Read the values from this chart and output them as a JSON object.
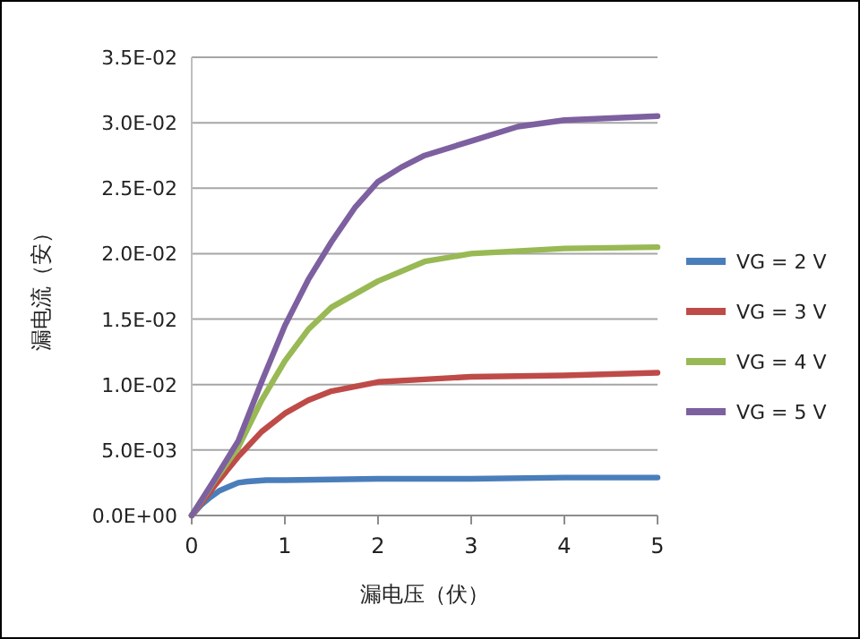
{
  "chart_data": {
    "type": "line",
    "xlabel": "漏电压（伏）",
    "ylabel": "漏电流（安）",
    "xlim": [
      0,
      5
    ],
    "ylim": [
      0,
      0.035
    ],
    "xticks": [
      0,
      1,
      2,
      3,
      4,
      5
    ],
    "yticks": [
      {
        "value": 0,
        "label": "0.0E+00"
      },
      {
        "value": 0.005,
        "label": "5.0E-03"
      },
      {
        "value": 0.01,
        "label": "1.0E-02"
      },
      {
        "value": 0.015,
        "label": "1.5E-02"
      },
      {
        "value": 0.02,
        "label": "2.0E-02"
      },
      {
        "value": 0.025,
        "label": "2.5E-02"
      },
      {
        "value": 0.03,
        "label": "3.0E-02"
      },
      {
        "value": 0.035,
        "label": "3.5E-02"
      }
    ],
    "grid": "y",
    "legend": "right",
    "marker": "none",
    "line_style": "solid",
    "series": [
      {
        "name": "VG = 2 V",
        "color": "#4a7ebb",
        "x": [
          0,
          0.1,
          0.2,
          0.3,
          0.4,
          0.5,
          0.6,
          0.8,
          1,
          2,
          3,
          4,
          5
        ],
        "values": [
          0,
          0.0008,
          0.0014,
          0.0019,
          0.0022,
          0.0025,
          0.0026,
          0.0027,
          0.0027,
          0.0028,
          0.0028,
          0.0029,
          0.0029
        ]
      },
      {
        "name": "VG = 3 V",
        "color": "#be4b48",
        "x": [
          0,
          0.25,
          0.5,
          0.75,
          1,
          1.25,
          1.5,
          2,
          2.5,
          3,
          4,
          5
        ],
        "values": [
          0,
          0.0023,
          0.0045,
          0.0064,
          0.0078,
          0.0088,
          0.0095,
          0.0102,
          0.0104,
          0.0106,
          0.0107,
          0.0109
        ]
      },
      {
        "name": "VG = 4 V",
        "color": "#98b954",
        "x": [
          0,
          0.25,
          0.5,
          0.75,
          1,
          1.25,
          1.5,
          2,
          2.5,
          3,
          4,
          5
        ],
        "values": [
          0,
          0.0027,
          0.0052,
          0.0088,
          0.0118,
          0.0142,
          0.0159,
          0.0179,
          0.0194,
          0.02,
          0.0204,
          0.0205
        ]
      },
      {
        "name": "VG = 5 V",
        "color": "#7d60a0",
        "x": [
          0,
          0.25,
          0.5,
          0.75,
          1,
          1.25,
          1.5,
          1.75,
          2,
          2.25,
          2.5,
          3,
          3.5,
          4,
          5
        ],
        "values": [
          0,
          0.0028,
          0.0057,
          0.0102,
          0.0145,
          0.018,
          0.0209,
          0.0235,
          0.0255,
          0.0266,
          0.0275,
          0.0286,
          0.0297,
          0.0302,
          0.0305
        ]
      }
    ]
  }
}
